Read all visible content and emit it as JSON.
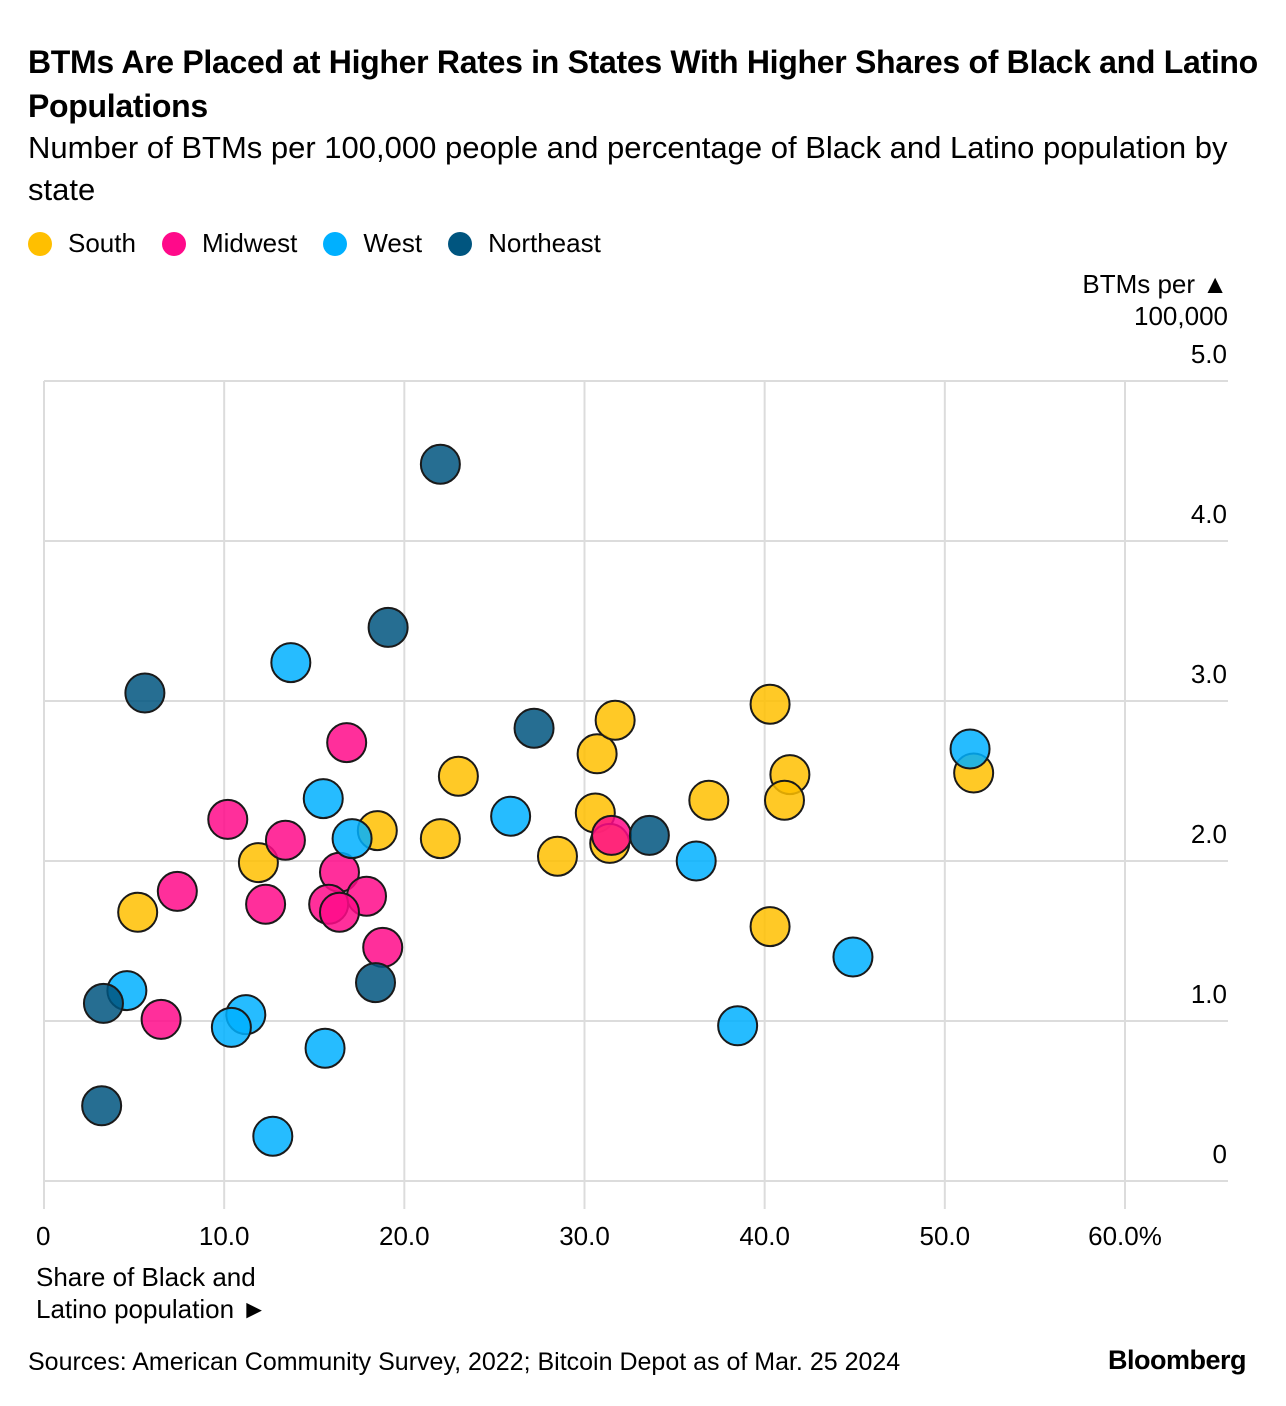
{
  "chart_data": {
    "type": "scatter",
    "title": "BTMs Are Placed at Higher Rates in States With Higher Shares of Black and Latino Populations",
    "subtitle": "Number of BTMs per 100,000 people and percentage of Black and Latino population by state",
    "xlabel": "Share of Black and Latino population ►",
    "ylabel": "BTMs per ▲ 100,000",
    "xlim": [
      0,
      60
    ],
    "ylim": [
      0,
      5
    ],
    "x_ticks": [
      "0",
      "10.0",
      "20.0",
      "30.0",
      "40.0",
      "50.0",
      "60.0%"
    ],
    "y_ticks": [
      "0",
      "1.0",
      "2.0",
      "3.0",
      "4.0",
      "5.0"
    ],
    "grid": true,
    "legend_placement": "top-left",
    "series": [
      {
        "name": "South",
        "color": "#ffbf00",
        "points": [
          [
            5.2,
            1.68
          ],
          [
            11.9,
            1.99
          ],
          [
            18.5,
            2.19
          ],
          [
            22.0,
            2.14
          ],
          [
            23.0,
            2.53
          ],
          [
            28.5,
            2.03
          ],
          [
            30.6,
            2.3
          ],
          [
            30.7,
            2.67
          ],
          [
            31.7,
            2.88
          ],
          [
            31.4,
            2.11
          ],
          [
            36.9,
            2.38
          ],
          [
            40.3,
            2.98
          ],
          [
            41.4,
            2.54
          ],
          [
            41.1,
            2.38
          ],
          [
            40.3,
            1.59
          ],
          [
            51.6,
            2.55
          ]
        ]
      },
      {
        "name": "Midwest",
        "color": "#ff0a8a",
        "points": [
          [
            10.2,
            2.26
          ],
          [
            13.4,
            2.13
          ],
          [
            16.8,
            2.74
          ],
          [
            7.4,
            1.81
          ],
          [
            12.3,
            1.73
          ],
          [
            16.4,
            1.93
          ],
          [
            17.9,
            1.78
          ],
          [
            15.8,
            1.73
          ],
          [
            16.4,
            1.68
          ],
          [
            18.8,
            1.46
          ],
          [
            6.5,
            1.01
          ],
          [
            31.5,
            2.16
          ]
        ]
      },
      {
        "name": "West",
        "color": "#00b0ff",
        "points": [
          [
            13.7,
            3.24
          ],
          [
            15.5,
            2.39
          ],
          [
            17.1,
            2.14
          ],
          [
            25.9,
            2.28
          ],
          [
            36.2,
            2.0
          ],
          [
            51.4,
            2.7
          ],
          [
            44.9,
            1.4
          ],
          [
            38.5,
            0.97
          ],
          [
            4.6,
            1.19
          ],
          [
            11.2,
            1.04
          ],
          [
            10.4,
            0.96
          ],
          [
            15.6,
            0.83
          ],
          [
            12.7,
            0.28
          ]
        ]
      },
      {
        "name": "Northeast",
        "color": "#00557f",
        "points": [
          [
            22.0,
            4.48
          ],
          [
            19.1,
            3.46
          ],
          [
            5.6,
            3.05
          ],
          [
            27.2,
            2.83
          ],
          [
            33.6,
            2.16
          ],
          [
            18.4,
            1.24
          ],
          [
            3.3,
            1.11
          ],
          [
            3.2,
            0.47
          ]
        ]
      }
    ]
  },
  "ylabel_lines": [
    "BTMs per ▲",
    "100,000"
  ],
  "xlabel_lines": [
    "Share of Black and",
    "Latino population ►"
  ],
  "source": "Sources: American Community Survey, 2022; Bitcoin Depot as of Mar. 25 2024",
  "logo": "Bloomberg"
}
